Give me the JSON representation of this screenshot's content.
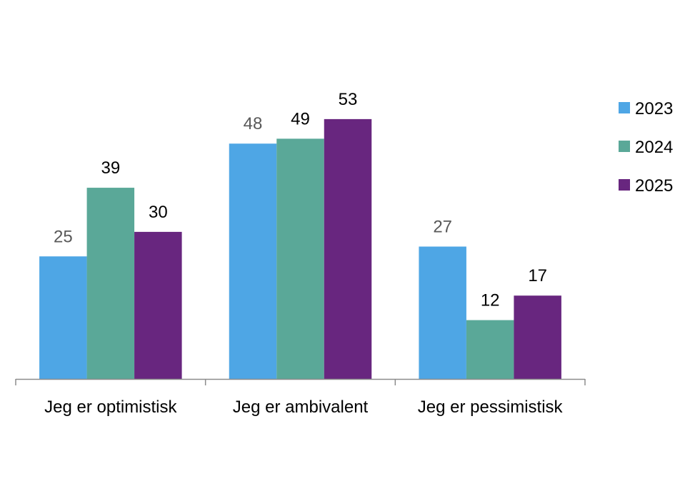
{
  "chart_data": {
    "type": "bar",
    "categories": [
      "Jeg er optimistisk",
      "Jeg er ambivalent",
      "Jeg er pessimistisk"
    ],
    "series": [
      {
        "name": "2023",
        "values": [
          25,
          48,
          27
        ],
        "color": "#4EA6E5",
        "label_color": "#595959"
      },
      {
        "name": "2024",
        "values": [
          39,
          49,
          12
        ],
        "color": "#5AA898",
        "label_color": "#000000"
      },
      {
        "name": "2025",
        "values": [
          30,
          53,
          17
        ],
        "color": "#68267F",
        "label_color": "#000000"
      }
    ],
    "ylim": [
      0,
      60
    ],
    "grid": false,
    "legend_position": "right",
    "axis_color": "#8C8C8C"
  }
}
